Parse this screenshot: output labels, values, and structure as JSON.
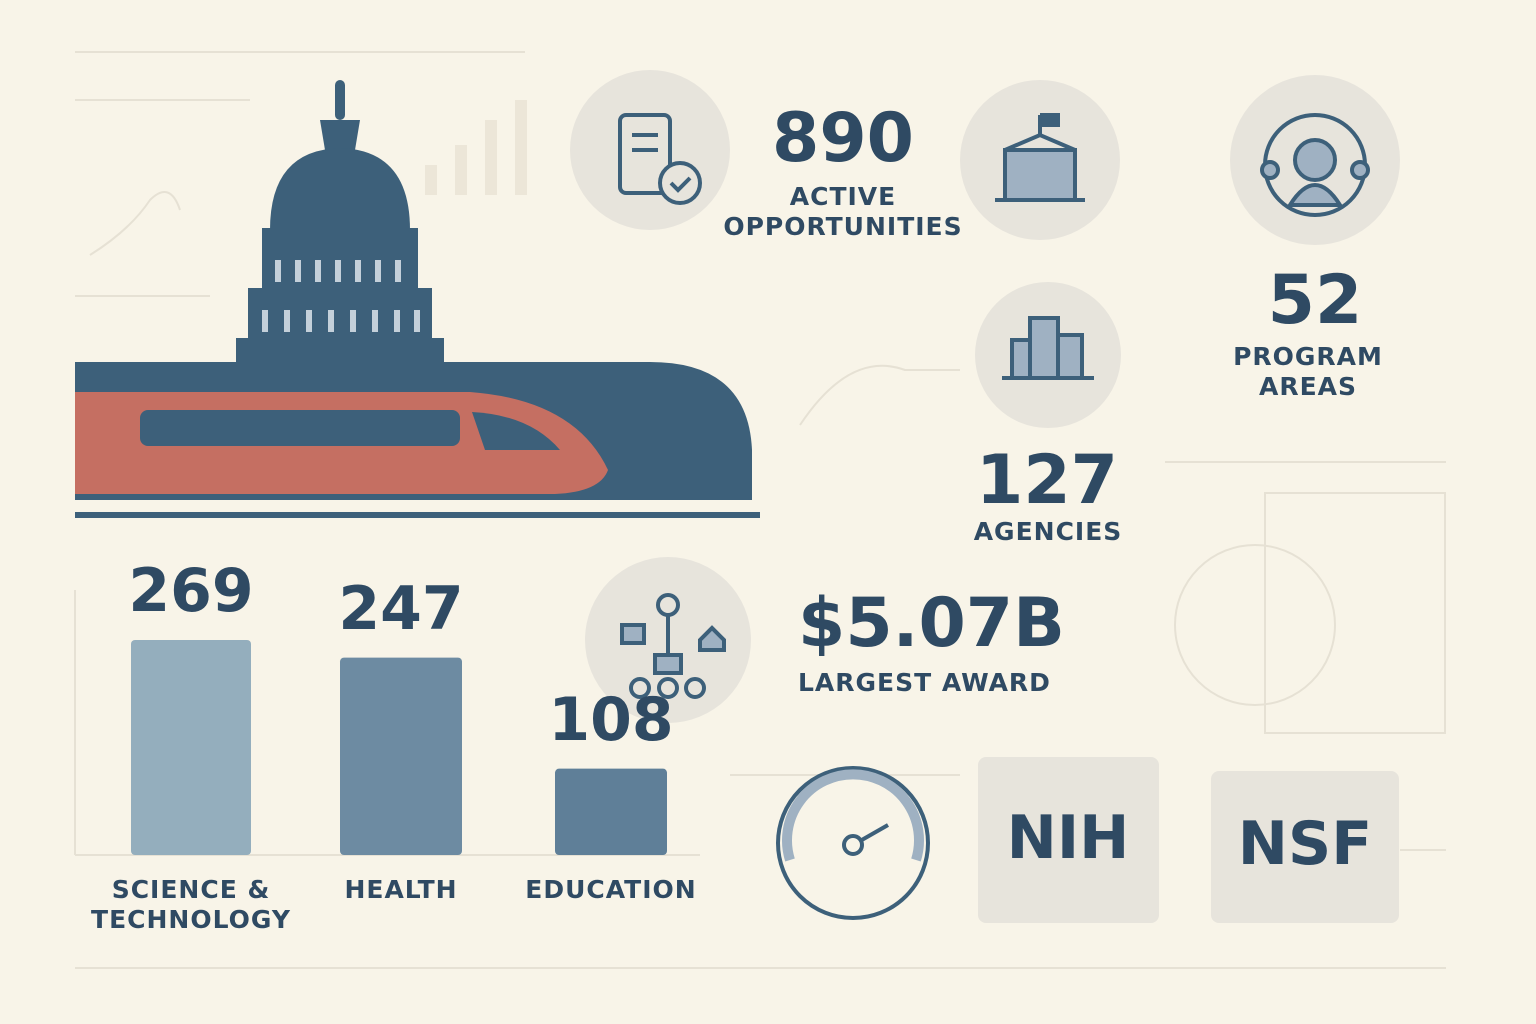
{
  "chart_data": {
    "type": "bar",
    "categories": [
      "SCIENCE & TECHNOLOGY",
      "HEALTH",
      "EDUCATION"
    ],
    "values": [
      269,
      247,
      108
    ]
  },
  "stats": [
    {
      "value": "890",
      "label": "ACTIVE OPPORTUNITIES"
    },
    {
      "value": "52",
      "label": "PROGRAM AREAS"
    },
    {
      "value": "127",
      "label": "AGENCIES"
    },
    {
      "value": "$5.07B",
      "label": "LARGEST AWARD"
    }
  ],
  "badges": [
    "NIH",
    "NSF"
  ]
}
